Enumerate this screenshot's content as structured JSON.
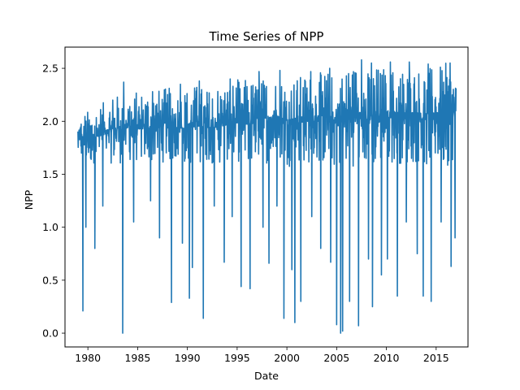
{
  "chart_data": {
    "type": "line",
    "title": "Time Series of NPP",
    "xlabel": "Date",
    "ylabel": "NPP",
    "xlim": [
      1977.7,
      2018.2
    ],
    "ylim": [
      -0.13,
      2.7
    ],
    "x_ticks": [
      1980,
      1985,
      1990,
      1995,
      2000,
      2005,
      2010,
      2015
    ],
    "x_tick_labels": [
      "1980",
      "1985",
      "1990",
      "1995",
      "2000",
      "2005",
      "2010",
      "2015"
    ],
    "y_ticks": [
      0.0,
      0.5,
      1.0,
      1.5,
      2.0,
      2.5
    ],
    "y_tick_labels": [
      "0.0",
      "0.5",
      "1.0",
      "1.5",
      "2.0",
      "2.5"
    ],
    "grid": false,
    "series": [
      {
        "color": "#1f77b4",
        "envelope_x": [
          1979.0,
          1980.0,
          1981.0,
          1982.0,
          1983.0,
          1984.0,
          1985.0,
          1986.0,
          1987.0,
          1988.0,
          1989.0,
          1990.0,
          1991.0,
          1992.0,
          1993.0,
          1994.0,
          1995.0,
          1996.0,
          1997.0,
          1998.0,
          1999.0,
          2000.0,
          2001.0,
          2002.0,
          2003.0,
          2004.0,
          2005.0,
          2006.0,
          2007.0,
          2008.0,
          2009.0,
          2010.0,
          2011.0,
          2012.0,
          2013.0,
          2014.0,
          2015.0,
          2016.0,
          2017.0
        ],
        "envelope_high": [
          2.05,
          2.1,
          2.15,
          2.2,
          2.25,
          2.3,
          2.28,
          2.3,
          2.3,
          2.32,
          2.3,
          2.32,
          2.35,
          2.3,
          2.35,
          2.35,
          2.4,
          2.4,
          2.38,
          2.42,
          2.42,
          2.4,
          2.42,
          2.45,
          2.45,
          2.48,
          2.45,
          2.5,
          2.55,
          2.5,
          2.52,
          2.52,
          2.5,
          2.52,
          2.5,
          2.52,
          2.5,
          2.55,
          2.5
        ],
        "envelope_low": [
          1.55,
          1.5,
          1.5,
          1.5,
          1.48,
          1.5,
          1.5,
          1.48,
          1.5,
          1.48,
          1.5,
          1.45,
          1.48,
          1.5,
          1.45,
          1.5,
          1.48,
          1.45,
          1.5,
          1.45,
          1.5,
          1.42,
          1.45,
          1.45,
          1.45,
          1.42,
          1.4,
          1.42,
          1.4,
          1.42,
          1.4,
          1.45,
          1.45,
          1.42,
          1.45,
          1.4,
          1.45,
          1.4,
          1.5
        ],
        "dips": [
          [
            1979.5,
            0.21
          ],
          [
            1979.8,
            1.0
          ],
          [
            1980.7,
            0.8
          ],
          [
            1981.5,
            1.2
          ],
          [
            1983.5,
            0.0
          ],
          [
            1984.6,
            1.05
          ],
          [
            1986.3,
            1.25
          ],
          [
            1987.2,
            0.9
          ],
          [
            1988.4,
            0.29
          ],
          [
            1989.5,
            0.85
          ],
          [
            1990.2,
            0.33
          ],
          [
            1990.5,
            0.62
          ],
          [
            1991.6,
            0.14
          ],
          [
            1992.7,
            1.2
          ],
          [
            1993.7,
            0.67
          ],
          [
            1994.5,
            1.1
          ],
          [
            1995.4,
            0.44
          ],
          [
            1996.3,
            0.42
          ],
          [
            1997.6,
            1.0
          ],
          [
            1998.2,
            0.66
          ],
          [
            1999.0,
            1.2
          ],
          [
            1999.7,
            0.14
          ],
          [
            2000.5,
            0.6
          ],
          [
            2000.8,
            0.1
          ],
          [
            2001.4,
            0.3
          ],
          [
            2002.5,
            1.1
          ],
          [
            2003.4,
            0.8
          ],
          [
            2004.4,
            0.67
          ],
          [
            2005.0,
            0.08
          ],
          [
            2005.4,
            0.0
          ],
          [
            2005.6,
            0.02
          ],
          [
            2006.3,
            0.3
          ],
          [
            2007.2,
            0.07
          ],
          [
            2008.2,
            0.7
          ],
          [
            2008.6,
            0.25
          ],
          [
            2009.5,
            0.55
          ],
          [
            2010.1,
            0.7
          ],
          [
            2011.1,
            0.35
          ],
          [
            2012.0,
            1.05
          ],
          [
            2013.1,
            0.75
          ],
          [
            2013.7,
            0.35
          ],
          [
            2014.5,
            0.3
          ],
          [
            2015.5,
            1.05
          ],
          [
            2016.5,
            0.63
          ],
          [
            2016.9,
            0.9
          ]
        ],
        "spikes": [
          [
            1982.5,
            2.2
          ],
          [
            1983.6,
            2.37
          ],
          [
            1986.5,
            2.28
          ],
          [
            1989.3,
            2.35
          ],
          [
            1991.2,
            2.38
          ],
          [
            1994.3,
            2.4
          ],
          [
            1997.2,
            2.47
          ],
          [
            1999.3,
            2.48
          ],
          [
            2002.4,
            2.47
          ],
          [
            2004.3,
            2.5
          ],
          [
            2006.2,
            2.45
          ],
          [
            2007.5,
            2.58
          ],
          [
            2008.5,
            2.55
          ],
          [
            2010.4,
            2.56
          ],
          [
            2012.3,
            2.56
          ],
          [
            2014.2,
            2.54
          ],
          [
            2016.4,
            2.55
          ]
        ]
      }
    ]
  }
}
